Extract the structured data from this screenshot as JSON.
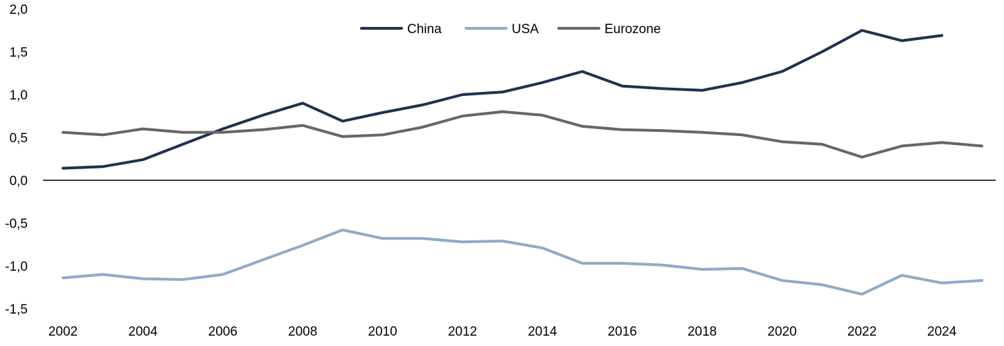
{
  "chart_data": {
    "type": "line",
    "title": "",
    "xlabel": "",
    "ylabel": "",
    "x": [
      2002,
      2003,
      2004,
      2005,
      2006,
      2007,
      2008,
      2009,
      2010,
      2011,
      2012,
      2013,
      2014,
      2015,
      2016,
      2017,
      2018,
      2019,
      2020,
      2021,
      2022,
      2023,
      2024,
      2025
    ],
    "x_ticks": [
      "2002",
      "2004",
      "2006",
      "2008",
      "2010",
      "2012",
      "2014",
      "2016",
      "2018",
      "2020",
      "2022",
      "2024"
    ],
    "y_ticks": [
      "2,0",
      "1,5",
      "1,0",
      "0,5",
      "0,0",
      "-0,5",
      "-1,0",
      "-1,5"
    ],
    "ylim": [
      -1.5,
      2.0
    ],
    "xlim": [
      2002,
      2025
    ],
    "grid": false,
    "legend_position": "top-center",
    "series": [
      {
        "name": "China",
        "color": "#1f3150",
        "values": [
          0.14,
          0.16,
          0.24,
          0.42,
          0.6,
          0.76,
          0.9,
          0.69,
          0.79,
          0.88,
          1.0,
          1.03,
          1.14,
          1.27,
          1.1,
          1.07,
          1.05,
          1.14,
          1.27,
          1.5,
          1.75,
          1.63,
          1.69,
          null
        ]
      },
      {
        "name": "USA",
        "color": "#8eabc9",
        "values": [
          -1.14,
          -1.1,
          -1.15,
          -1.16,
          -1.1,
          -0.93,
          -0.76,
          -0.58,
          -0.68,
          -0.68,
          -0.72,
          -0.71,
          -0.79,
          -0.97,
          -0.97,
          -0.99,
          -1.04,
          -1.03,
          -1.17,
          -1.22,
          -1.33,
          -1.11,
          -1.2,
          -1.17
        ]
      },
      {
        "name": "Eurozone",
        "color": "#666666",
        "values": [
          0.56,
          0.53,
          0.6,
          0.56,
          0.56,
          0.59,
          0.64,
          0.51,
          0.53,
          0.62,
          0.75,
          0.8,
          0.76,
          0.63,
          0.59,
          0.58,
          0.56,
          0.53,
          0.45,
          0.42,
          0.27,
          0.4,
          0.44,
          0.4
        ]
      }
    ]
  }
}
